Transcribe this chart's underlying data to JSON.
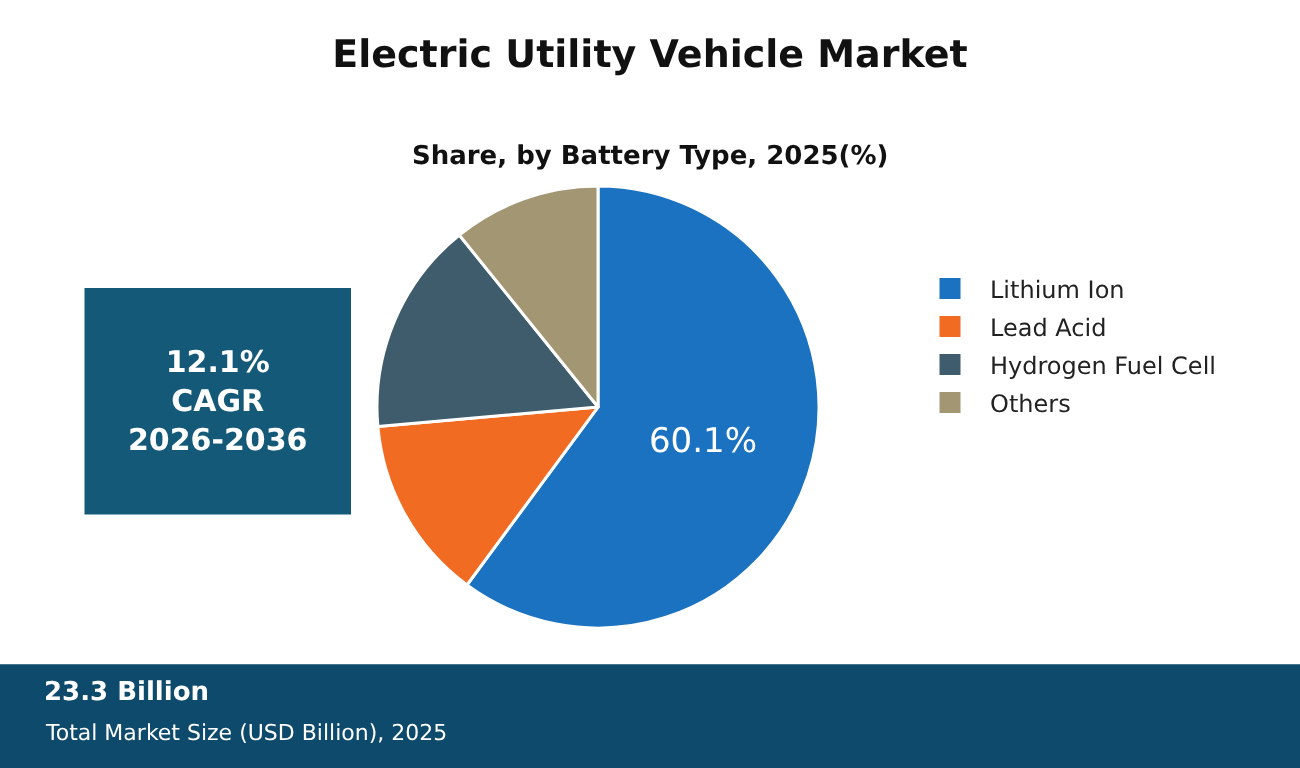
{
  "chart_data": {
    "type": "pie",
    "title": "Electric Utility Vehicle Market",
    "subtitle": "Share, by Battery Type, 2025(%)",
    "categories": [
      "Lithium Ion",
      "Lead Acid",
      "Hydrogen Fuel Cell",
      "Others"
    ],
    "values": [
      60.1,
      13.5,
      15.6,
      10.8
    ],
    "colors": [
      "#1b72c0",
      "#f26b22",
      "#3e5c6c",
      "#a29673"
    ],
    "value_labels": [
      "60.1%",
      null,
      null,
      null
    ],
    "legend": "right",
    "annotations": [
      "12.1%\nCAGR\n2026-2036",
      "23.3 Billion",
      "Total Market Size (USD Billion), 2025"
    ]
  }
}
